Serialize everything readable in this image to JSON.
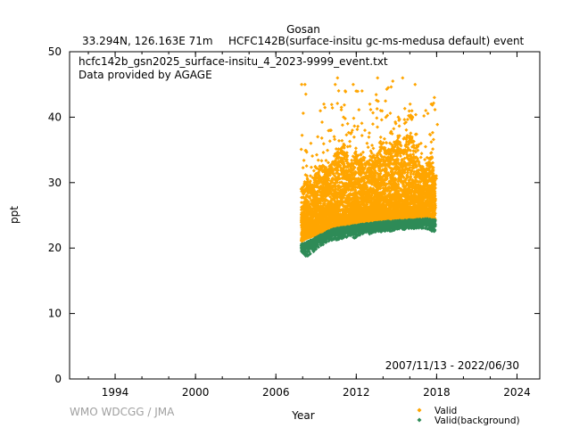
{
  "header": {
    "station": "Gosan",
    "location": "33.294N, 126.163E 71m",
    "description": "HCFC142B(surface-insitu gc-ms-medusa default) event"
  },
  "annotations": {
    "file": "hcfc142b_gsn2025_surface-insitu_4_2023-9999_event.txt",
    "provider": "Data provided by AGAGE",
    "period": "2007/11/13 - 2022/06/30"
  },
  "watermark": "WMO WDCGG / JMA",
  "colors": {
    "valid": "#ffa500",
    "background": "#2e8b57"
  },
  "chart_data": {
    "type": "scatter",
    "xlabel": "Year",
    "ylabel": "ppt",
    "xlim": [
      1990.6,
      2025.7
    ],
    "ylim": [
      0,
      50
    ],
    "xticks": [
      "1994",
      "2000",
      "2006",
      "2012",
      "2018",
      "2024"
    ],
    "yticks": [
      "0",
      "10",
      "20",
      "30",
      "40",
      "50"
    ],
    "legend": "bottom-right",
    "grid": false,
    "series": [
      {
        "name": "Valid",
        "marker": "diamond",
        "color": "#ffa500",
        "x": [
          2007.9,
          2008.3,
          2008.7,
          2009.1,
          2009.5,
          2009.9,
          2010.3,
          2010.7,
          2011.1,
          2011.5,
          2011.9,
          2012.3,
          2012.7,
          2013.1,
          2013.5,
          2013.9,
          2014.3,
          2014.7,
          2015.1,
          2015.5,
          2015.9,
          2016.3,
          2016.7,
          2017.2,
          2017.6,
          2017.9
        ],
        "y_baseline": [
          21.0,
          21.5,
          21.8,
          22.1,
          22.4,
          22.6,
          22.8,
          23.0,
          23.1,
          23.3,
          23.4,
          23.5,
          23.6,
          23.7,
          23.8,
          23.9,
          24.0,
          24.0,
          24.1,
          24.1,
          24.2,
          24.2,
          24.3,
          24.3,
          24.3,
          24.3
        ],
        "y_typical_high": [
          29,
          31,
          30,
          32,
          33,
          32,
          34,
          35,
          36,
          33,
          35,
          34,
          33,
          35,
          34,
          36,
          35,
          36,
          37,
          35,
          38,
          37,
          33,
          32,
          35,
          30
        ],
        "y_max": [
          45.0,
          45.0,
          36.0,
          37.0,
          42.0,
          38.0,
          45.0,
          46.0,
          44.0,
          39.0,
          45.0,
          44.0,
          38.0,
          42.0,
          46.0,
          41.0,
          44.5,
          45.5,
          40.0,
          46.0,
          42.0,
          45.0,
          36.0,
          41.0,
          42.0,
          43.0
        ]
      },
      {
        "name": "Valid(background)",
        "marker": "diamond",
        "color": "#2e8b57",
        "x": [
          2007.9,
          2008.3,
          2008.7,
          2009.1,
          2009.5,
          2009.9,
          2010.3,
          2010.7,
          2011.1,
          2011.5,
          2011.9,
          2012.3,
          2012.7,
          2013.1,
          2013.5,
          2013.9,
          2014.3,
          2014.7,
          2015.1,
          2015.5,
          2015.9,
          2016.3,
          2016.7,
          2017.2,
          2017.6,
          2017.9
        ],
        "y": [
          20.1,
          20.4,
          20.8,
          21.3,
          21.7,
          22.1,
          22.4,
          22.6,
          22.7,
          22.8,
          23.0,
          23.1,
          23.2,
          23.3,
          23.4,
          23.5,
          23.6,
          23.6,
          23.7,
          23.7,
          23.8,
          23.8,
          23.9,
          24.0,
          23.9,
          23.8
        ],
        "y_min": [
          19.5,
          18.5,
          19.2,
          20.0,
          20.5,
          21.0,
          21.2,
          21.3,
          21.5,
          21.8,
          21.5,
          22.0,
          22.3,
          22.0,
          22.4,
          22.5,
          22.6,
          22.6,
          22.8,
          22.8,
          22.9,
          23.0,
          23.0,
          23.0,
          22.5,
          22.5
        ]
      }
    ]
  }
}
